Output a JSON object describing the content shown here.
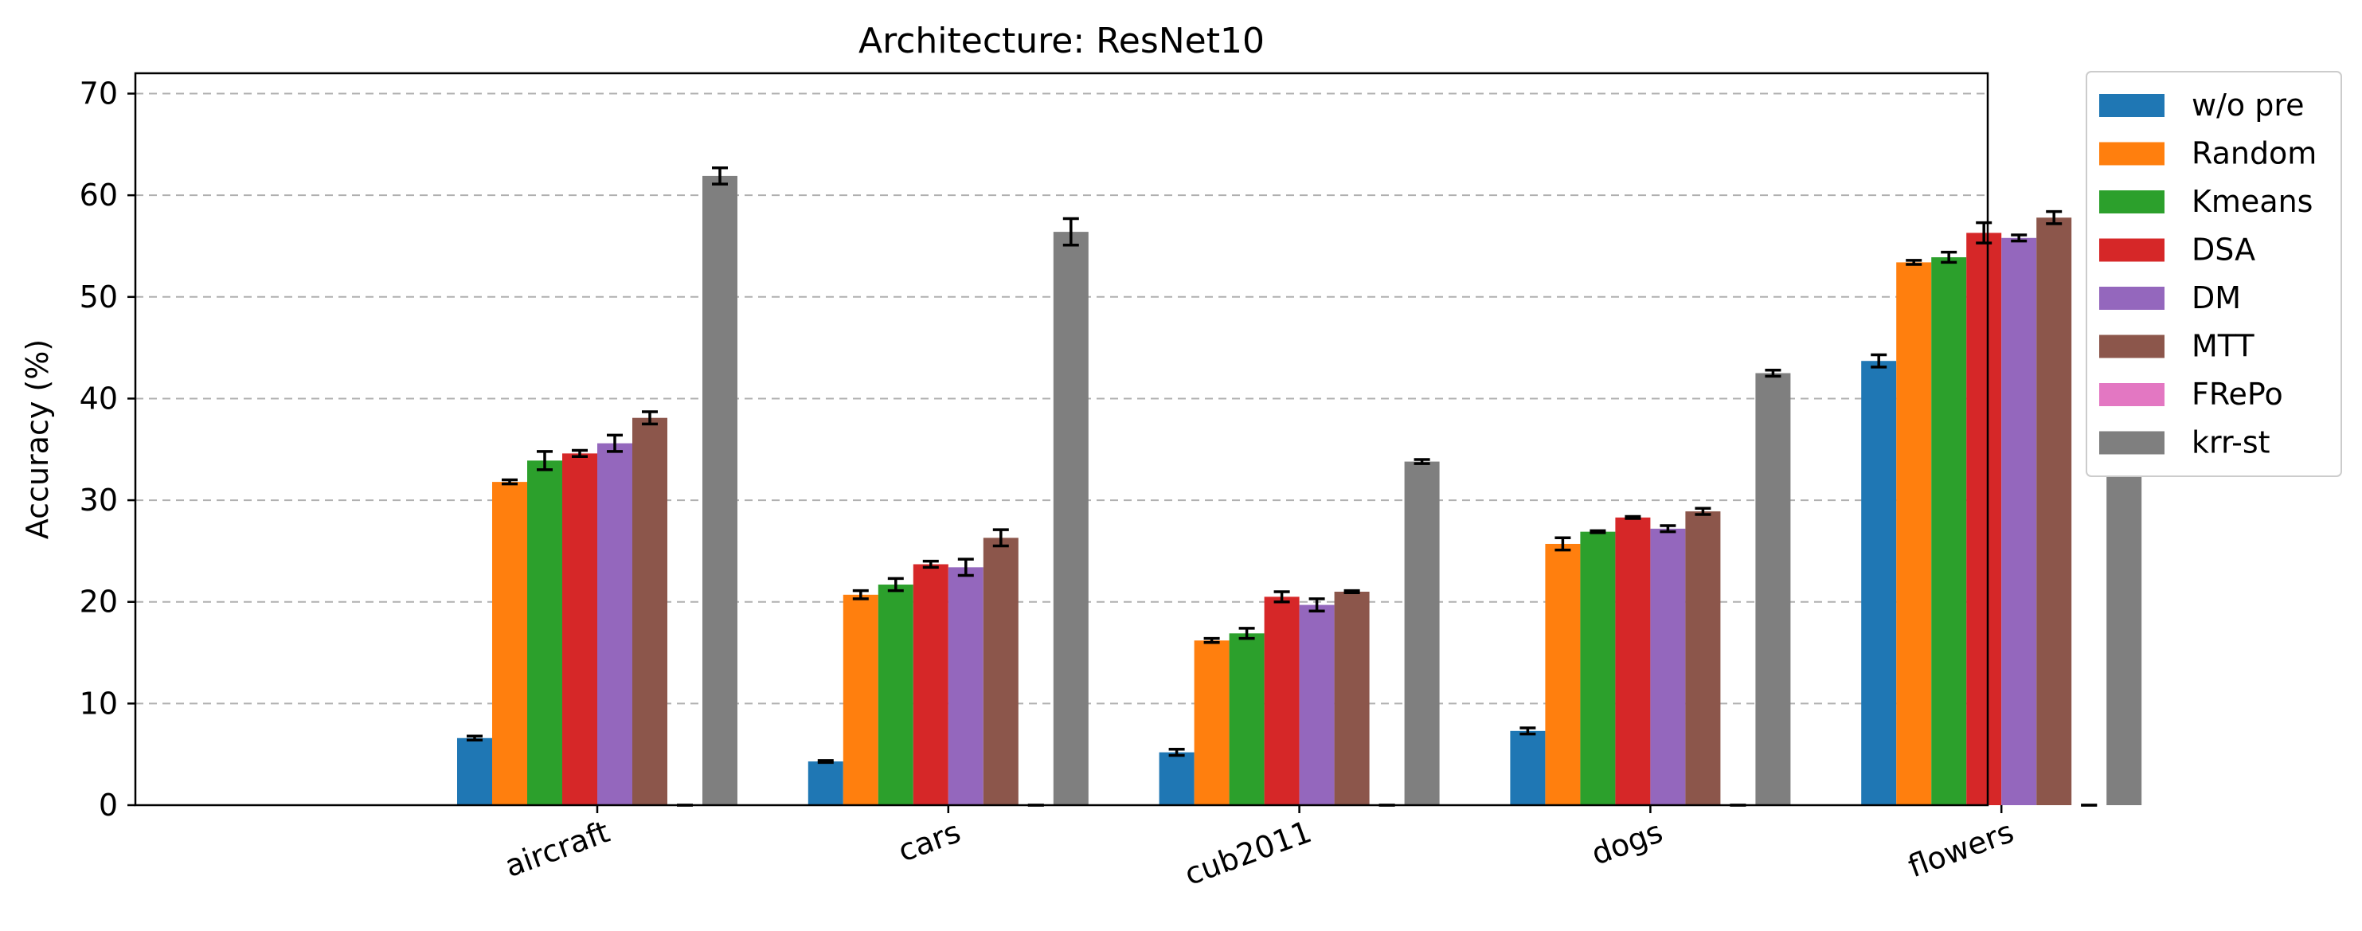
{
  "chart_data": {
    "type": "bar",
    "title": "Architecture: ResNet10",
    "xlabel": "",
    "ylabel": "Accuracy (%)",
    "ylim": [
      0,
      72
    ],
    "yticks": [
      0,
      10,
      20,
      30,
      40,
      50,
      60,
      70
    ],
    "grid": "horizontal dashed",
    "legend_position": "outside-right",
    "categories": [
      "aircraft",
      "cars",
      "cub2011",
      "dogs",
      "flowers"
    ],
    "series": [
      {
        "name": "w/o pre",
        "color": "#1f77b4",
        "values": [
          6.6,
          4.3,
          5.2,
          7.3,
          43.7
        ],
        "errors": [
          0.2,
          0.1,
          0.3,
          0.3,
          0.6
        ]
      },
      {
        "name": "Random",
        "color": "#ff7f0e",
        "values": [
          31.8,
          20.7,
          16.2,
          25.7,
          53.4
        ],
        "errors": [
          0.2,
          0.4,
          0.2,
          0.6,
          0.2
        ]
      },
      {
        "name": "Kmeans",
        "color": "#2ca02c",
        "values": [
          33.9,
          21.7,
          16.9,
          26.9,
          53.9
        ],
        "errors": [
          0.9,
          0.6,
          0.5,
          0.1,
          0.5
        ]
      },
      {
        "name": "DSA",
        "color": "#d62728",
        "values": [
          34.6,
          23.7,
          20.5,
          28.3,
          56.3
        ],
        "errors": [
          0.3,
          0.3,
          0.5,
          0.1,
          1.0
        ]
      },
      {
        "name": "DM",
        "color": "#9467bd",
        "values": [
          35.6,
          23.4,
          19.7,
          27.2,
          55.8
        ],
        "errors": [
          0.8,
          0.8,
          0.6,
          0.3,
          0.3
        ]
      },
      {
        "name": "MTT",
        "color": "#8c564b",
        "values": [
          38.1,
          26.3,
          21.0,
          28.9,
          57.8
        ],
        "errors": [
          0.6,
          0.8,
          0.1,
          0.3,
          0.6
        ]
      },
      {
        "name": "FRePo",
        "color": "#e377c2",
        "values": [
          0.0,
          0.0,
          0.0,
          0.0,
          0.0
        ],
        "errors": [
          0,
          0,
          0,
          0,
          0
        ]
      },
      {
        "name": "krr-st",
        "color": "#7f7f7f",
        "values": [
          61.9,
          56.4,
          33.8,
          42.5,
          68.1
        ],
        "errors": [
          0.8,
          1.3,
          0.2,
          0.3,
          0.4
        ]
      }
    ]
  }
}
